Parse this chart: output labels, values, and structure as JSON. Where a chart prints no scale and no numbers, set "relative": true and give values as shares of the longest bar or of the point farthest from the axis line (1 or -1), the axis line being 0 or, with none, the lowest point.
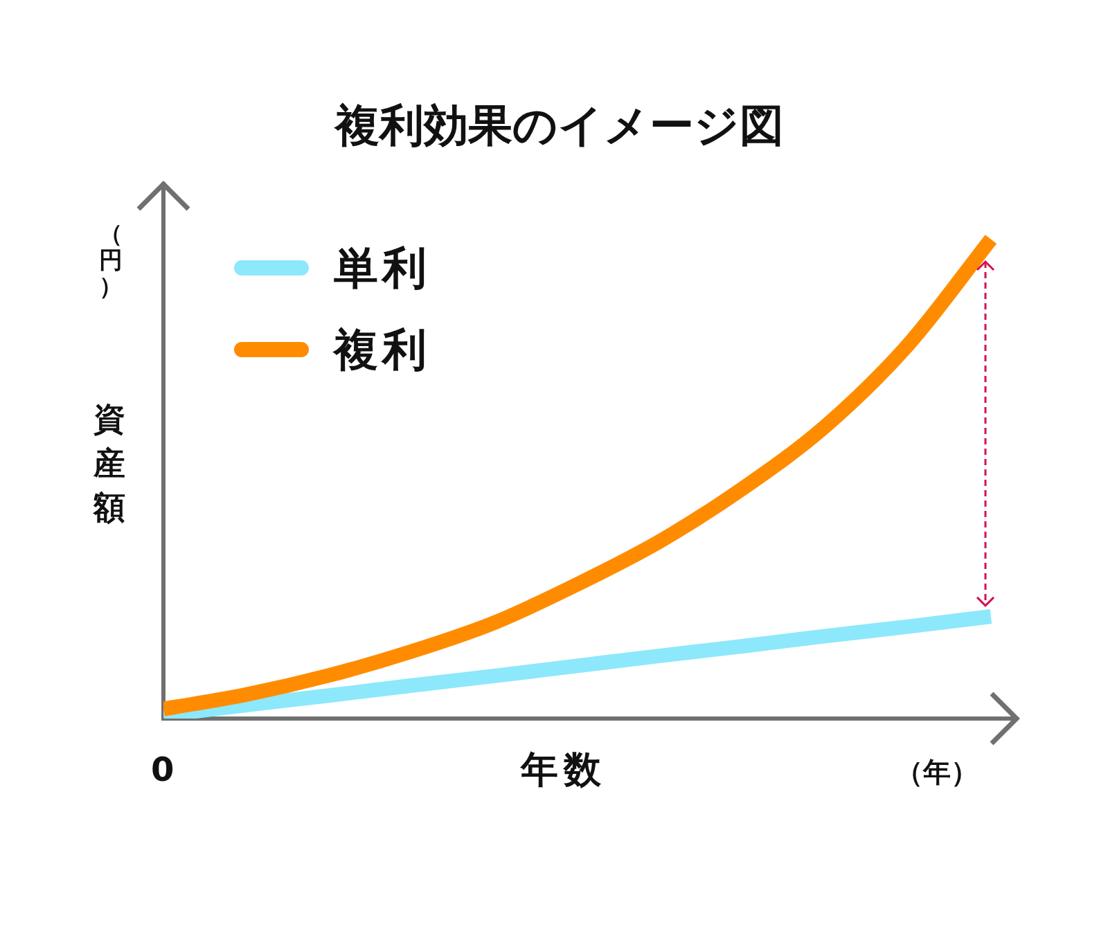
{
  "chart_data": {
    "type": "line",
    "title": "複利効果のイメージ図",
    "xlabel": "年数",
    "ylabel": "資産額",
    "relative": true,
    "legend": "top left",
    "marker": "none",
    "line_style": "solid",
    "grid": false,
    "categories": [
      null,
      null,
      null,
      null,
      null,
      null,
      null,
      null,
      null,
      null,
      null
    ],
    "series": [
      {
        "name": "単利",
        "color": "#8de8fb",
        "values": [
          0.007,
          0.028,
          0.048,
          0.069,
          0.089,
          0.11,
          0.131,
          0.151,
          0.172,
          0.192,
          0.213
        ]
      },
      {
        "name": "複利",
        "color": "#ff8c00",
        "values": [
          0.02,
          0.05,
          0.09,
          0.14,
          0.2,
          0.28,
          0.37,
          0.48,
          0.61,
          0.78,
          1.0
        ]
      }
    ],
    "annotations": [
      "0",
      "（年）",
      "（円）"
    ]
  }
}
